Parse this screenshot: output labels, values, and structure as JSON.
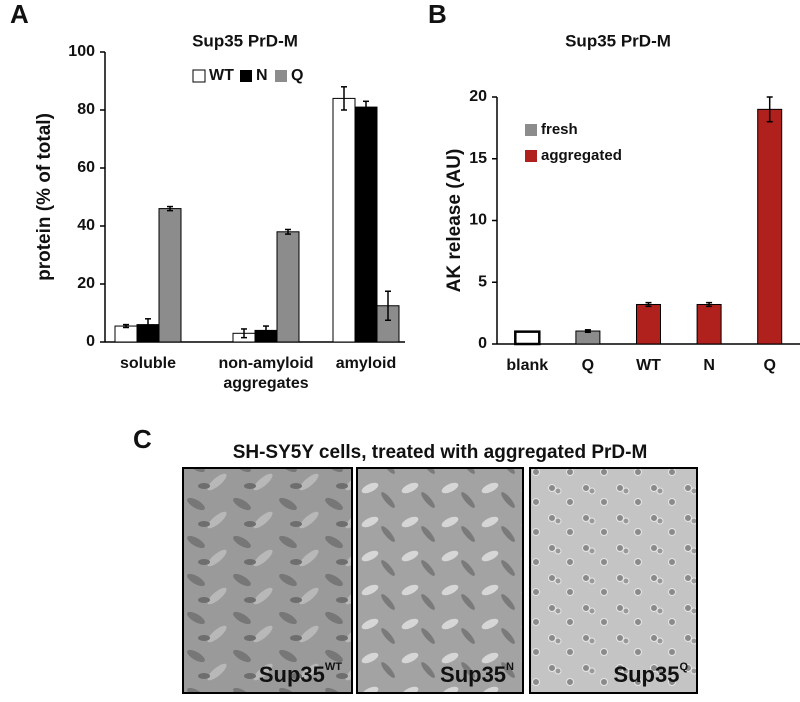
{
  "chart_data": [
    {
      "type": "bar",
      "panel_label": "A",
      "title": "Sup35 PrD-M",
      "y_label": "protein (% of total)",
      "categories": [
        "soluble",
        "non-amyloid aggregates",
        "amyloid"
      ],
      "series": [
        {
          "name": "WT",
          "color": "#ffffff",
          "values": [
            5.5,
            3,
            84
          ],
          "errors": [
            0.5,
            1.5,
            4
          ]
        },
        {
          "name": "N",
          "color": "#000000",
          "values": [
            6,
            4,
            81
          ],
          "errors": [
            2,
            1.5,
            2
          ]
        },
        {
          "name": "Q",
          "color": "#8c8c8c",
          "values": [
            46,
            38,
            12.5
          ],
          "errors": [
            0.7,
            0.8,
            5
          ]
        }
      ],
      "ylim": [
        0,
        100
      ],
      "yticks": [
        0,
        20,
        40,
        60,
        80,
        100
      ],
      "legend": "top",
      "grid": false
    },
    {
      "type": "bar",
      "panel_label": "B",
      "title": "Sup35 PrD-M",
      "y_label": "AK release (AU)",
      "categories": [
        "blank",
        "Q",
        "WT",
        "N",
        "Q"
      ],
      "series": [
        {
          "color": "#ffffff",
          "values": [
            1,
            null,
            null,
            null,
            null
          ]
        },
        {
          "name": "fresh",
          "color": "#8c8c8c",
          "values": [
            null,
            1.05,
            null,
            null,
            null
          ],
          "errors": [
            null,
            0.1,
            null,
            null,
            null
          ]
        },
        {
          "name": "aggregated",
          "color": "#b0201c",
          "values": [
            null,
            null,
            3.2,
            3.2,
            19
          ],
          "errors": [
            null,
            null,
            0.15,
            0.15,
            1
          ]
        }
      ],
      "ylim": [
        0,
        20
      ],
      "yticks": [
        0,
        5,
        10,
        15,
        20
      ],
      "legend": "top-left",
      "grid": false
    }
  ],
  "panel_c": {
    "panel_label": "C",
    "title": "SH-SY5Y cells, treated with aggregated PrD-M",
    "images": [
      {
        "base": "Sup35",
        "sup": "WT"
      },
      {
        "base": "Sup35",
        "sup": "N"
      },
      {
        "base": "Sup35",
        "sup": "Q"
      }
    ]
  }
}
